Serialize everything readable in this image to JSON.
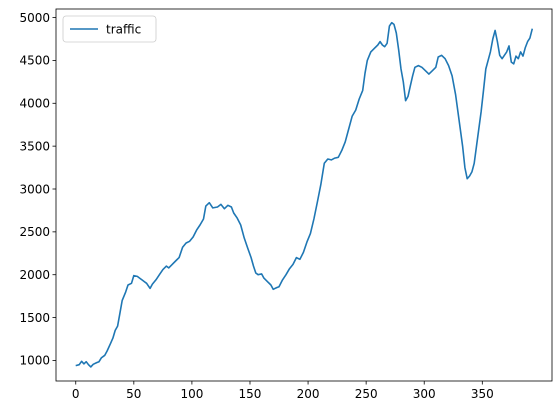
{
  "chart_data": {
    "type": "line",
    "title": "",
    "xlabel": "",
    "ylabel": "",
    "xlim": [
      -17,
      410
    ],
    "ylim": [
      760,
      5100
    ],
    "xticks": [
      0,
      50,
      100,
      150,
      200,
      250,
      300,
      350
    ],
    "yticks": [
      1000,
      1500,
      2000,
      2500,
      3000,
      3500,
      4000,
      4500,
      5000
    ],
    "grid": false,
    "legend_position": "upper-left",
    "series": [
      {
        "name": "traffic",
        "color": "#1f77b4",
        "points": [
          [
            0,
            940
          ],
          [
            3,
            950
          ],
          [
            5,
            990
          ],
          [
            7,
            960
          ],
          [
            9,
            985
          ],
          [
            11,
            950
          ],
          [
            13,
            925
          ],
          [
            15,
            955
          ],
          [
            18,
            975
          ],
          [
            20,
            985
          ],
          [
            22,
            1030
          ],
          [
            25,
            1060
          ],
          [
            27,
            1110
          ],
          [
            30,
            1200
          ],
          [
            32,
            1260
          ],
          [
            34,
            1350
          ],
          [
            36,
            1400
          ],
          [
            38,
            1550
          ],
          [
            40,
            1700
          ],
          [
            43,
            1800
          ],
          [
            45,
            1880
          ],
          [
            48,
            1900
          ],
          [
            50,
            1990
          ],
          [
            53,
            1980
          ],
          [
            55,
            1960
          ],
          [
            57,
            1940
          ],
          [
            59,
            1920
          ],
          [
            61,
            1900
          ],
          [
            63,
            1860
          ],
          [
            64,
            1840
          ],
          [
            66,
            1890
          ],
          [
            69,
            1940
          ],
          [
            72,
            2000
          ],
          [
            75,
            2060
          ],
          [
            78,
            2100
          ],
          [
            80,
            2080
          ],
          [
            83,
            2120
          ],
          [
            86,
            2160
          ],
          [
            89,
            2200
          ],
          [
            92,
            2320
          ],
          [
            95,
            2370
          ],
          [
            98,
            2390
          ],
          [
            101,
            2440
          ],
          [
            104,
            2520
          ],
          [
            107,
            2580
          ],
          [
            110,
            2650
          ],
          [
            112,
            2800
          ],
          [
            115,
            2840
          ],
          [
            118,
            2780
          ],
          [
            122,
            2790
          ],
          [
            125,
            2820
          ],
          [
            128,
            2770
          ],
          [
            131,
            2810
          ],
          [
            134,
            2790
          ],
          [
            136,
            2720
          ],
          [
            139,
            2660
          ],
          [
            142,
            2580
          ],
          [
            145,
            2430
          ],
          [
            148,
            2310
          ],
          [
            151,
            2200
          ],
          [
            153,
            2100
          ],
          [
            155,
            2020
          ],
          [
            157,
            2000
          ],
          [
            160,
            2010
          ],
          [
            162,
            1960
          ],
          [
            165,
            1920
          ],
          [
            168,
            1880
          ],
          [
            170,
            1830
          ],
          [
            173,
            1850
          ],
          [
            175,
            1860
          ],
          [
            178,
            1940
          ],
          [
            181,
            2000
          ],
          [
            184,
            2070
          ],
          [
            187,
            2120
          ],
          [
            190,
            2200
          ],
          [
            193,
            2180
          ],
          [
            196,
            2260
          ],
          [
            199,
            2380
          ],
          [
            202,
            2480
          ],
          [
            205,
            2650
          ],
          [
            208,
            2850
          ],
          [
            211,
            3050
          ],
          [
            214,
            3300
          ],
          [
            217,
            3350
          ],
          [
            220,
            3340
          ],
          [
            223,
            3360
          ],
          [
            226,
            3370
          ],
          [
            229,
            3450
          ],
          [
            232,
            3550
          ],
          [
            235,
            3700
          ],
          [
            238,
            3850
          ],
          [
            241,
            3920
          ],
          [
            244,
            4050
          ],
          [
            247,
            4150
          ],
          [
            249,
            4350
          ],
          [
            251,
            4500
          ],
          [
            254,
            4600
          ],
          [
            257,
            4640
          ],
          [
            260,
            4680
          ],
          [
            262,
            4720
          ],
          [
            264,
            4680
          ],
          [
            266,
            4660
          ],
          [
            268,
            4700
          ],
          [
            270,
            4900
          ],
          [
            272,
            4940
          ],
          [
            274,
            4920
          ],
          [
            276,
            4820
          ],
          [
            278,
            4620
          ],
          [
            280,
            4400
          ],
          [
            282,
            4250
          ],
          [
            284,
            4030
          ],
          [
            286,
            4080
          ],
          [
            288,
            4200
          ],
          [
            290,
            4320
          ],
          [
            292,
            4420
          ],
          [
            295,
            4440
          ],
          [
            298,
            4420
          ],
          [
            301,
            4380
          ],
          [
            304,
            4340
          ],
          [
            307,
            4380
          ],
          [
            310,
            4420
          ],
          [
            312,
            4540
          ],
          [
            315,
            4560
          ],
          [
            318,
            4520
          ],
          [
            321,
            4440
          ],
          [
            324,
            4320
          ],
          [
            327,
            4100
          ],
          [
            330,
            3800
          ],
          [
            333,
            3500
          ],
          [
            335,
            3250
          ],
          [
            337,
            3120
          ],
          [
            339,
            3150
          ],
          [
            341,
            3200
          ],
          [
            343,
            3300
          ],
          [
            345,
            3500
          ],
          [
            347,
            3700
          ],
          [
            349,
            3900
          ],
          [
            351,
            4150
          ],
          [
            353,
            4400
          ],
          [
            355,
            4500
          ],
          [
            357,
            4600
          ],
          [
            359,
            4750
          ],
          [
            361,
            4850
          ],
          [
            363,
            4720
          ],
          [
            365,
            4560
          ],
          [
            367,
            4520
          ],
          [
            369,
            4560
          ],
          [
            371,
            4600
          ],
          [
            373,
            4670
          ],
          [
            375,
            4480
          ],
          [
            377,
            4460
          ],
          [
            379,
            4550
          ],
          [
            381,
            4520
          ],
          [
            383,
            4600
          ],
          [
            385,
            4550
          ],
          [
            387,
            4650
          ],
          [
            389,
            4720
          ],
          [
            391,
            4760
          ],
          [
            393,
            4870
          ]
        ]
      }
    ]
  }
}
